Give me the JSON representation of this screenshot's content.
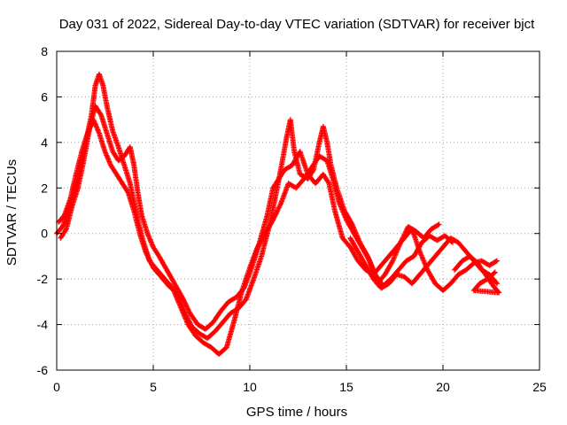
{
  "chart_data": {
    "type": "scatter",
    "title": "Day 031 of 2022, Sidereal Day-to-day VTEC variation (SDTVAR) for receiver bjct",
    "xlabel": "GPS time / hours",
    "ylabel": "SDTVAR / TECUs",
    "xlim": [
      0,
      25
    ],
    "ylim": [
      -6,
      8
    ],
    "x_ticks": [
      "0",
      "5",
      "10",
      "15",
      "20",
      "25"
    ],
    "y_ticks": [
      "-6",
      "-4",
      "-2",
      "0",
      "2",
      "4",
      "6",
      "8"
    ],
    "grid": true,
    "marker": "+",
    "series": [
      {
        "name": "SDTVAR",
        "color": "#ff0000",
        "traces": [
          [
            [
              0.0,
              0.0
            ],
            [
              0.3,
              0.3
            ],
            [
              0.6,
              0.9
            ],
            [
              0.9,
              1.8
            ],
            [
              1.2,
              2.8
            ],
            [
              1.5,
              4.0
            ],
            [
              1.8,
              5.2
            ],
            [
              2.0,
              6.5
            ],
            [
              2.2,
              7.0
            ],
            [
              2.4,
              6.5
            ],
            [
              2.6,
              5.6
            ],
            [
              2.9,
              4.5
            ],
            [
              3.2,
              3.8
            ],
            [
              3.5,
              3.0
            ],
            [
              3.8,
              2.2
            ],
            [
              4.0,
              1.4
            ],
            [
              4.2,
              0.6
            ],
            [
              4.5,
              -0.4
            ],
            [
              4.8,
              -1.2
            ],
            [
              5.2,
              -1.6
            ],
            [
              5.6,
              -2.0
            ],
            [
              6.0,
              -2.4
            ],
            [
              6.4,
              -3.2
            ],
            [
              6.8,
              -4.0
            ],
            [
              7.2,
              -4.5
            ],
            [
              7.6,
              -4.8
            ],
            [
              8.0,
              -5.0
            ],
            [
              8.4,
              -5.3
            ],
            [
              8.8,
              -5.0
            ],
            [
              9.2,
              -3.8
            ],
            [
              9.6,
              -2.5
            ],
            [
              10.0,
              -1.5
            ],
            [
              10.4,
              -0.6
            ],
            [
              10.8,
              0.0
            ],
            [
              11.2,
              0.6
            ],
            [
              11.6,
              1.3
            ],
            [
              12.0,
              2.2
            ],
            [
              12.4,
              2.0
            ],
            [
              12.8,
              2.4
            ],
            [
              13.2,
              2.9
            ],
            [
              13.6,
              3.4
            ],
            [
              14.0,
              3.2
            ],
            [
              14.3,
              2.4
            ],
            [
              14.6,
              1.4
            ],
            [
              15.0,
              0.6
            ],
            [
              15.4,
              0.0
            ],
            [
              15.8,
              -0.6
            ],
            [
              16.2,
              -1.2
            ],
            [
              16.6,
              -2.2
            ],
            [
              17.0,
              -1.8
            ],
            [
              17.4,
              -1.2
            ],
            [
              17.8,
              -0.4
            ],
            [
              18.2,
              0.3
            ],
            [
              18.6,
              0.1
            ],
            [
              19.0,
              -0.2
            ],
            [
              19.4,
              0.2
            ],
            [
              19.8,
              0.4
            ]
          ],
          [
            [
              0.1,
              0.5
            ],
            [
              0.4,
              0.8
            ],
            [
              0.7,
              1.5
            ],
            [
              1.0,
              2.6
            ],
            [
              1.3,
              3.6
            ],
            [
              1.6,
              4.4
            ],
            [
              1.9,
              5.0
            ],
            [
              2.2,
              4.4
            ],
            [
              2.5,
              3.6
            ],
            [
              2.8,
              3.0
            ],
            [
              3.1,
              2.6
            ],
            [
              3.4,
              2.2
            ],
            [
              3.7,
              1.8
            ],
            [
              4.0,
              1.0
            ],
            [
              4.3,
              0.0
            ],
            [
              4.6,
              -0.8
            ],
            [
              5.0,
              -1.5
            ],
            [
              5.4,
              -1.9
            ],
            [
              5.8,
              -2.3
            ],
            [
              6.2,
              -2.6
            ],
            [
              6.6,
              -3.4
            ],
            [
              7.0,
              -4.1
            ],
            [
              7.4,
              -4.4
            ],
            [
              7.8,
              -4.6
            ],
            [
              8.2,
              -4.3
            ],
            [
              8.6,
              -3.9
            ],
            [
              9.0,
              -3.5
            ],
            [
              9.4,
              -3.3
            ],
            [
              9.8,
              -2.9
            ],
            [
              10.2,
              -2.0
            ],
            [
              10.6,
              -1.0
            ],
            [
              11.0,
              0.3
            ],
            [
              11.3,
              1.5
            ],
            [
              11.6,
              2.8
            ],
            [
              11.9,
              4.2
            ],
            [
              12.1,
              5.0
            ],
            [
              12.3,
              3.6
            ],
            [
              12.6,
              2.6
            ],
            [
              13.0,
              2.4
            ],
            [
              13.3,
              2.8
            ],
            [
              13.6,
              4.0
            ],
            [
              13.8,
              4.7
            ],
            [
              14.0,
              4.0
            ],
            [
              14.2,
              3.0
            ],
            [
              14.5,
              2.0
            ],
            [
              14.9,
              1.0
            ],
            [
              15.3,
              0.4
            ],
            [
              15.7,
              -0.4
            ],
            [
              16.1,
              -1.0
            ],
            [
              16.5,
              -1.8
            ],
            [
              16.9,
              -2.3
            ],
            [
              17.3,
              -2.0
            ],
            [
              17.7,
              -1.6
            ],
            [
              18.1,
              -1.2
            ],
            [
              18.5,
              -1.0
            ],
            [
              18.9,
              -0.4
            ],
            [
              19.3,
              -0.1
            ],
            [
              19.7,
              -0.3
            ],
            [
              20.1,
              -0.1
            ],
            [
              20.5,
              -0.4
            ]
          ],
          [
            [
              0.2,
              -0.2
            ],
            [
              0.5,
              0.2
            ],
            [
              0.8,
              1.2
            ],
            [
              1.1,
              2.0
            ],
            [
              1.4,
              3.2
            ],
            [
              1.7,
              4.6
            ],
            [
              2.0,
              5.6
            ],
            [
              2.3,
              5.2
            ],
            [
              2.6,
              4.4
            ],
            [
              2.9,
              3.6
            ],
            [
              3.2,
              3.2
            ],
            [
              3.5,
              3.4
            ],
            [
              3.8,
              3.8
            ],
            [
              4.0,
              3.0
            ],
            [
              4.2,
              1.8
            ],
            [
              4.4,
              0.8
            ],
            [
              4.7,
              0.0
            ],
            [
              5.0,
              -0.6
            ],
            [
              5.3,
              -1.0
            ],
            [
              5.7,
              -1.6
            ],
            [
              6.1,
              -2.2
            ],
            [
              6.5,
              -2.8
            ],
            [
              6.9,
              -3.5
            ],
            [
              7.3,
              -4.0
            ],
            [
              7.7,
              -4.2
            ],
            [
              8.1,
              -3.9
            ],
            [
              8.5,
              -3.4
            ],
            [
              8.9,
              -3.0
            ],
            [
              9.3,
              -2.8
            ],
            [
              9.7,
              -2.4
            ],
            [
              10.1,
              -1.5
            ],
            [
              10.5,
              -0.4
            ],
            [
              10.9,
              0.8
            ],
            [
              11.2,
              2.0
            ],
            [
              11.5,
              2.4
            ],
            [
              11.8,
              2.8
            ],
            [
              12.2,
              3.0
            ],
            [
              12.6,
              3.6
            ],
            [
              13.0,
              2.6
            ],
            [
              13.4,
              2.2
            ],
            [
              13.8,
              2.6
            ],
            [
              14.1,
              2.2
            ],
            [
              14.4,
              1.0
            ],
            [
              14.8,
              -0.2
            ],
            [
              15.2,
              -0.6
            ],
            [
              15.6,
              -1.2
            ],
            [
              16.0,
              -1.6
            ],
            [
              16.4,
              -1.8
            ],
            [
              16.8,
              -1.4
            ],
            [
              17.2,
              -1.0
            ],
            [
              17.6,
              -0.6
            ],
            [
              18.0,
              -0.2
            ],
            [
              18.4,
              0.2
            ],
            [
              18.8,
              -0.8
            ],
            [
              19.2,
              -1.6
            ],
            [
              19.6,
              -2.2
            ],
            [
              20.0,
              -2.5
            ],
            [
              20.4,
              -2.2
            ],
            [
              20.8,
              -1.8
            ],
            [
              21.2,
              -1.6
            ],
            [
              21.6,
              -1.3
            ],
            [
              22.0,
              -1.2
            ],
            [
              22.4,
              -1.4
            ],
            [
              22.8,
              -1.2
            ]
          ],
          [
            [
              15.2,
              -0.2
            ],
            [
              15.6,
              -0.8
            ],
            [
              16.0,
              -1.4
            ],
            [
              16.4,
              -2.0
            ],
            [
              16.8,
              -2.4
            ],
            [
              17.2,
              -2.2
            ],
            [
              17.6,
              -1.8
            ],
            [
              18.0,
              -1.9
            ],
            [
              18.4,
              -2.2
            ],
            [
              18.8,
              -1.8
            ],
            [
              19.2,
              -1.4
            ],
            [
              19.6,
              -1.0
            ],
            [
              20.0,
              -0.6
            ],
            [
              20.4,
              -0.2
            ],
            [
              20.8,
              -0.4
            ],
            [
              21.2,
              -0.8
            ],
            [
              21.6,
              -1.2
            ],
            [
              22.0,
              -1.6
            ],
            [
              22.4,
              -1.8
            ],
            [
              22.8,
              -2.2
            ]
          ],
          [
            [
              20.6,
              -1.6
            ],
            [
              21.0,
              -1.2
            ],
            [
              21.4,
              -1.0
            ],
            [
              21.8,
              -1.3
            ],
            [
              22.2,
              -1.8
            ],
            [
              22.6,
              -2.3
            ],
            [
              22.9,
              -2.6
            ],
            [
              21.6,
              -2.5
            ],
            [
              21.9,
              -2.2
            ],
            [
              22.3,
              -2.0
            ],
            [
              22.7,
              -1.7
            ]
          ]
        ]
      }
    ]
  }
}
